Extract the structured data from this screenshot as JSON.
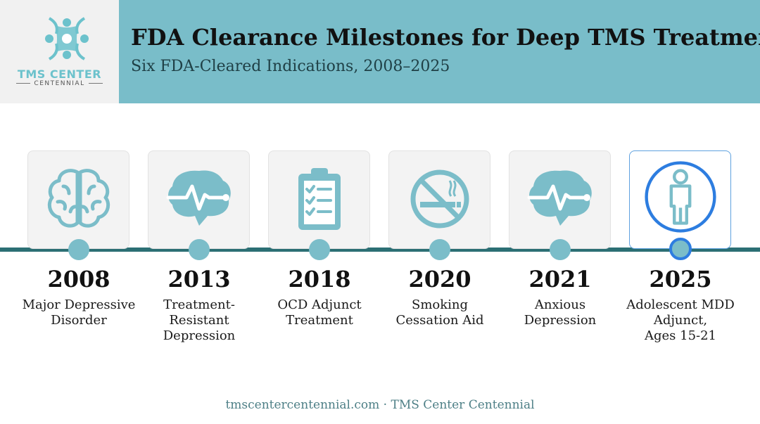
{
  "logo": {
    "name": "TMS CENTER",
    "subname": "CENTENNIAL"
  },
  "header": {
    "title": "FDA Clearance Milestones for Deep TMS Treatment",
    "subtitle": "Six FDA-Cleared Indications, 2008–2025"
  },
  "milestones": [
    {
      "year": "2008",
      "line1": "Major Depressive",
      "line2": "Disorder",
      "line3": "",
      "icon": "brain-icon"
    },
    {
      "year": "2013",
      "line1": "Treatment-",
      "line2": "Resistant",
      "line3": "Depression",
      "icon": "brain-pulse-icon"
    },
    {
      "year": "2018",
      "line1": "OCD Adjunct",
      "line2": "Treatment",
      "line3": "",
      "icon": "clipboard-checklist-icon"
    },
    {
      "year": "2020",
      "line1": "Smoking",
      "line2": "Cessation Aid",
      "line3": "",
      "icon": "no-smoking-icon"
    },
    {
      "year": "2021",
      "line1": "Anxious",
      "line2": "Depression",
      "line3": "",
      "icon": "brain-pulse-icon"
    },
    {
      "year": "2025",
      "line1": "Adolescent MDD",
      "line2": "Adjunct,",
      "line3": "Ages 15-21",
      "icon": "person-icon"
    }
  ],
  "footer": {
    "text": "tmscentercentennial.com · TMS Center Centennial"
  },
  "colors": {
    "header_band": "#79bdc9",
    "timeline": "#2c6f74",
    "icon": "#7bbdc9",
    "highlight": "#2d7de0"
  }
}
